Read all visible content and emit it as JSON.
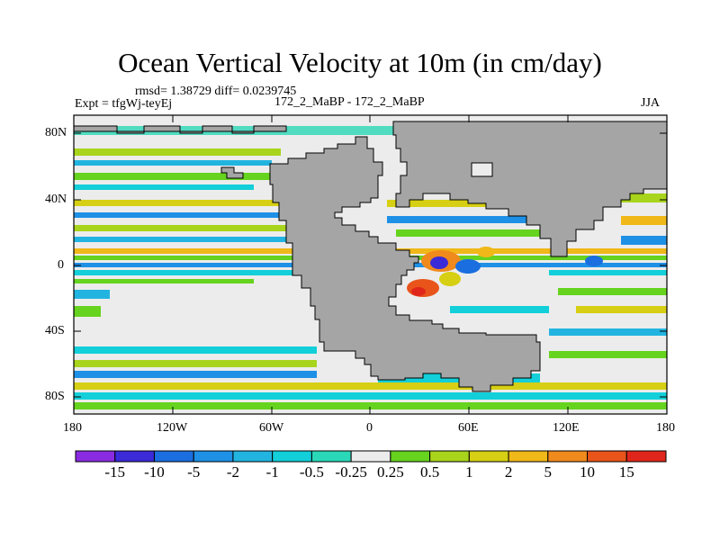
{
  "title": "Ocean Vertical Velocity at 10m (in cm/day)",
  "stats": "rmsd= 1.38729 diff= 0.0239745",
  "expt": "Expt = tfgWj-teyEj",
  "runs": "172_2_MaBP - 172_2_MaBP",
  "season": "JJA",
  "lat_ticks": [
    "80N",
    "40N",
    "0",
    "40S",
    "80S"
  ],
  "lon_ticks": [
    "180",
    "120W",
    "60W",
    "0",
    "60E",
    "120E",
    "180"
  ],
  "colorbar": {
    "labels": [
      "-15",
      "-10",
      "-5",
      "-2",
      "-1",
      "-0.5",
      "-0.25",
      "0.25",
      "0.5",
      "1",
      "2",
      "5",
      "10",
      "15"
    ],
    "colors": [
      "#8a2be2",
      "#3a2ad8",
      "#1a6ee0",
      "#1e90e6",
      "#22b4e0",
      "#12cfd9",
      "#2ad8b8",
      "#ececec",
      "#66d31e",
      "#a8d41c",
      "#d6cf14",
      "#f0b818",
      "#f08a1c",
      "#e8541a",
      "#e0261a"
    ]
  },
  "colors": {
    "land": "#a5a5a5",
    "ocean_neutral": "#ececec"
  }
}
